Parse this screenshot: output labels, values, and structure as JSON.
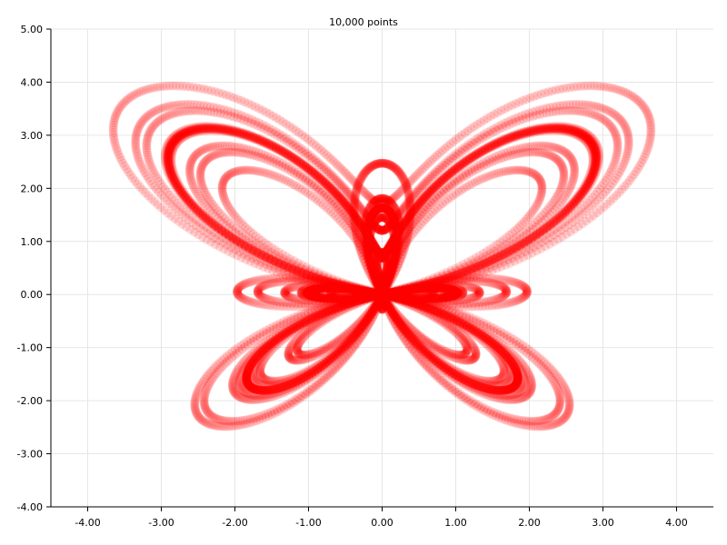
{
  "chart_data": {
    "type": "scatter",
    "title": "10,000 points",
    "xlabel": "",
    "ylabel": "",
    "xlim": [
      -4.5,
      4.5
    ],
    "ylim": [
      -4.0,
      5.0
    ],
    "x_ticks": [
      "-4.00",
      "-3.00",
      "-2.00",
      "-1.00",
      "0.00",
      "1.00",
      "2.00",
      "3.00",
      "4.00"
    ],
    "y_ticks": [
      "5.00",
      "4.00",
      "3.00",
      "2.00",
      "1.00",
      "0.00",
      "-1.00",
      "-2.00",
      "-3.00",
      "-4.00"
    ],
    "grid": true,
    "legend": "none",
    "point_count": 10000,
    "point_color": "#ff0000",
    "point_opacity": 0.15,
    "series": [
      {
        "curve": "butterfly",
        "parametric": "x = sin(t)*(e^cos(t) - 2cos(4t) - sin^5(t/12)), y = cos(t)*(e^cos(t) - 2cos(4t) - sin^5(t/12))",
        "t_range": [
          0,
          75.4
        ],
        "n_points": 10000
      }
    ]
  }
}
